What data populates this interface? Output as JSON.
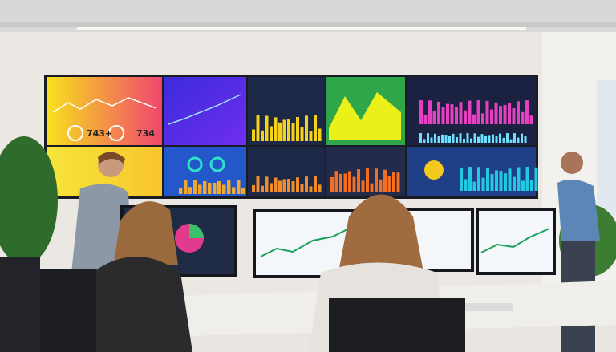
{
  "wall_display": {
    "stat_left": "743+",
    "stat_right": "734"
  }
}
